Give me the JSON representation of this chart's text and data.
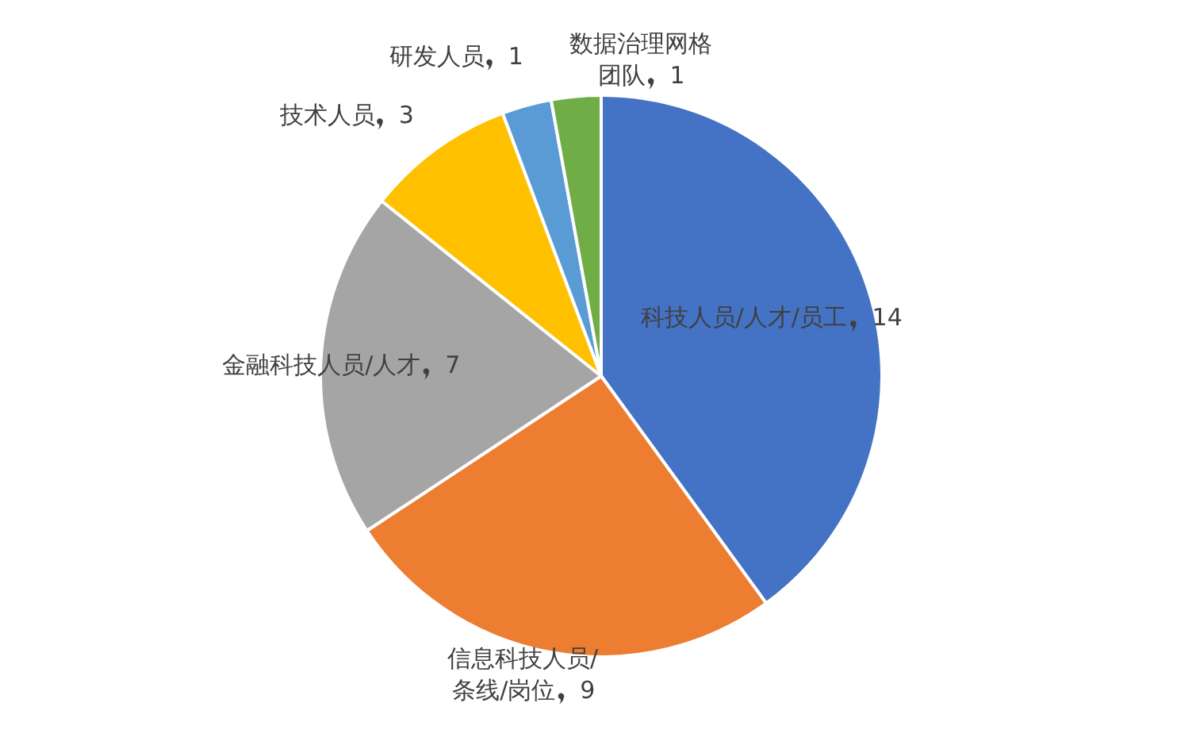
{
  "chart_data": {
    "type": "pie",
    "categories": [
      "科技人员/人才/员工",
      "信息科技人员/条线/岗位",
      "金融科技人员/人才",
      "技术人员",
      "研发人员",
      "数据治理网格团队"
    ],
    "values": [
      14,
      9,
      7,
      3,
      1,
      1
    ],
    "colors": [
      "#4472c4",
      "#ed7d31",
      "#a5a5a5",
      "#ffc000",
      "#5b9bd5",
      "#70ad47"
    ],
    "data_labels": true
  }
}
